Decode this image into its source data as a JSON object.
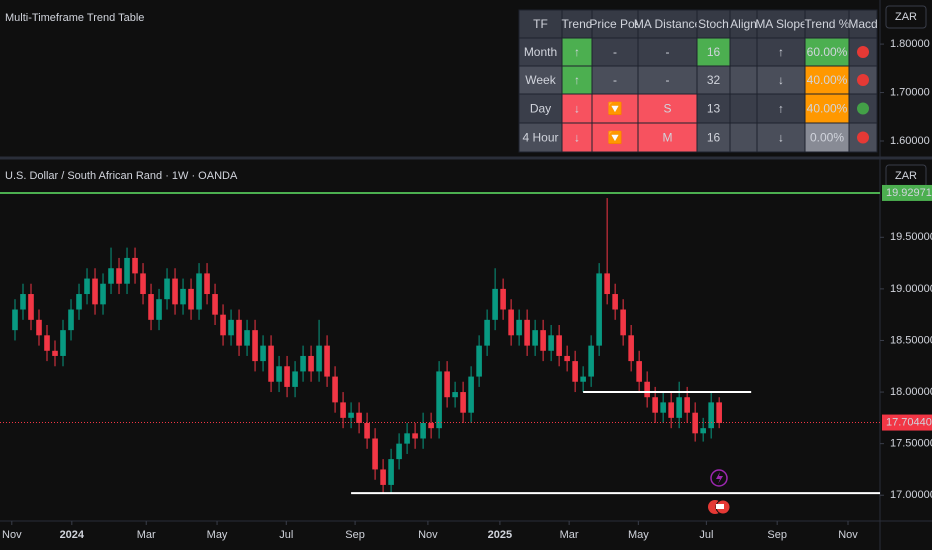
{
  "indicator": {
    "title": "Multi-Timeframe Trend Table",
    "currency": "ZAR",
    "ylim": [
      1.567,
      1.891
    ],
    "yticks": [
      {
        "value": 1.8,
        "label": "1.80000"
      },
      {
        "value": 1.7,
        "label": "1.70000"
      },
      {
        "value": 1.6,
        "label": "1.60000"
      }
    ],
    "table": {
      "header": [
        "TF",
        "Trend",
        "Price Pos",
        "MA Distance",
        "Stoch",
        "Align",
        "MA Slope",
        "Trend %",
        "Macd"
      ],
      "rows": [
        {
          "cells": [
            "Month",
            "↑",
            "-",
            "-",
            "16",
            null,
            "↑",
            "60.00%"
          ],
          "colors": [
            "#3a3e4a",
            "#4caf50",
            "#3a3e4a",
            "#3a3e4a",
            "#4caf50",
            "#3a3e4a",
            "#3a3e4a",
            "#4caf50",
            "#3a3e4a"
          ],
          "macd": "#e53935"
        },
        {
          "cells": [
            "Week",
            "↑",
            "-",
            "-",
            "32",
            null,
            "↓",
            "40.00%"
          ],
          "colors": [
            "#4a4e5a",
            "#4caf50",
            "#4a4e5a",
            "#4a4e5a",
            "#4a4e5a",
            "#4a4e5a",
            "#4a4e5a",
            "#ff9800",
            "#4a4e5a"
          ],
          "macd": "#e53935"
        },
        {
          "cells": [
            "Day",
            "↓",
            "🔽",
            "S",
            "13",
            null,
            "↑",
            "40.00%"
          ],
          "colors": [
            "#3a3e4a",
            "#f7525f",
            "#f7525f",
            "#f7525f",
            "#3a3e4a",
            "#3a3e4a",
            "#3a3e4a",
            "#ff9800",
            "#3a3e4a"
          ],
          "macd": "#43a047"
        },
        {
          "cells": [
            "4 Hour",
            "↓",
            "🔽",
            "M",
            "16",
            null,
            "↓",
            "0.00%"
          ],
          "colors": [
            "#4a4e5a",
            "#f7525f",
            "#f7525f",
            "#f7525f",
            "#4a4e5a",
            "#4a4e5a",
            "#4a4e5a",
            "#888b95",
            "#4a4e5a"
          ],
          "macd": "#e53935"
        }
      ]
    }
  },
  "chart_data": {
    "type": "candlestick",
    "title": "U.S. Dollar / South African Rand · 1W · OANDA",
    "currency": "ZAR",
    "up_color": "#089981",
    "down_color": "#f23645",
    "categories": [
      null,
      null,
      null,
      null,
      null,
      null,
      null,
      null,
      null,
      null,
      null,
      null,
      null,
      null,
      null,
      null,
      null,
      null,
      null,
      null,
      null,
      null,
      null,
      null,
      null,
      null,
      null,
      null,
      null,
      null,
      null,
      null,
      null,
      null,
      null,
      null,
      null,
      null,
      null,
      null,
      null,
      null,
      null,
      null,
      null,
      null,
      null,
      null,
      null,
      null,
      null,
      null,
      null,
      null,
      null,
      null,
      null,
      null,
      null,
      null,
      null,
      null,
      null,
      null,
      null,
      null,
      null,
      null,
      null,
      null,
      null,
      null,
      null,
      null,
      null,
      null,
      null,
      null,
      null,
      null,
      null,
      null,
      null,
      null,
      null,
      null,
      null,
      null,
      null
    ],
    "open": [
      18.6,
      18.8,
      18.95,
      18.7,
      18.55,
      18.4,
      18.35,
      18.6,
      18.8,
      18.95,
      19.1,
      18.85,
      19.05,
      19.2,
      19.05,
      19.3,
      19.15,
      18.95,
      18.7,
      18.9,
      19.1,
      18.85,
      19.0,
      18.8,
      19.15,
      18.95,
      18.75,
      18.55,
      18.7,
      18.45,
      18.6,
      18.3,
      18.45,
      18.1,
      18.25,
      18.05,
      18.2,
      18.35,
      18.2,
      18.45,
      18.15,
      17.9,
      17.75,
      17.8,
      17.7,
      17.55,
      17.25,
      17.1,
      17.35,
      17.5,
      17.6,
      17.55,
      17.7,
      17.65,
      18.2,
      17.95,
      18.0,
      17.8,
      18.15,
      18.45,
      18.7,
      19.0,
      18.8,
      18.55,
      18.7,
      18.45,
      18.6,
      18.4,
      18.55,
      18.35,
      18.3,
      18.1,
      18.15,
      18.45,
      19.15,
      18.95,
      18.8,
      18.55,
      18.3,
      18.1,
      17.95,
      17.8,
      17.9,
      17.75,
      17.95,
      17.8,
      17.6,
      17.65,
      17.9
    ],
    "high": [
      18.9,
      19.05,
      19.05,
      18.8,
      18.65,
      18.5,
      18.7,
      18.9,
      19.05,
      19.2,
      19.2,
      19.15,
      19.4,
      19.3,
      19.4,
      19.4,
      19.25,
      19.05,
      19.0,
      19.2,
      19.2,
      19.1,
      19.1,
      19.25,
      19.25,
      19.05,
      18.85,
      18.8,
      18.8,
      18.7,
      18.7,
      18.55,
      18.55,
      18.35,
      18.35,
      18.3,
      18.45,
      18.45,
      18.7,
      18.55,
      18.25,
      18.0,
      17.9,
      17.9,
      17.8,
      17.65,
      17.35,
      17.45,
      17.6,
      17.7,
      17.7,
      17.8,
      17.8,
      18.3,
      18.3,
      18.1,
      18.1,
      18.25,
      18.55,
      18.8,
      19.2,
      19.1,
      18.9,
      18.8,
      18.8,
      18.7,
      18.7,
      18.65,
      18.65,
      18.45,
      18.4,
      18.25,
      18.55,
      19.25,
      19.88,
      19.05,
      18.9,
      18.65,
      18.4,
      18.2,
      18.05,
      18.0,
      18.0,
      18.1,
      18.05,
      17.9,
      17.75,
      18.0,
      17.95
    ],
    "low": [
      18.5,
      18.7,
      18.6,
      18.45,
      18.3,
      18.25,
      18.25,
      18.5,
      18.7,
      18.85,
      18.75,
      18.75,
      18.95,
      18.95,
      18.95,
      19.05,
      18.85,
      18.6,
      18.6,
      18.8,
      18.75,
      18.75,
      18.7,
      18.7,
      18.85,
      18.65,
      18.45,
      18.45,
      18.35,
      18.35,
      18.2,
      18.2,
      18.0,
      18.0,
      17.95,
      17.95,
      18.1,
      18.1,
      18.1,
      18.05,
      17.8,
      17.65,
      17.65,
      17.6,
      17.45,
      17.15,
      17.02,
      17.02,
      17.25,
      17.4,
      17.45,
      17.45,
      17.55,
      17.55,
      17.85,
      17.85,
      17.7,
      17.7,
      18.05,
      18.35,
      18.6,
      18.7,
      18.45,
      18.45,
      18.35,
      18.35,
      18.3,
      18.3,
      18.25,
      18.2,
      18.0,
      18.0,
      18.05,
      18.35,
      18.85,
      18.7,
      18.45,
      18.2,
      18.0,
      17.85,
      17.7,
      17.7,
      17.65,
      17.65,
      17.7,
      17.52,
      17.52,
      17.55,
      17.65
    ],
    "close": [
      18.8,
      18.95,
      18.7,
      18.55,
      18.4,
      18.35,
      18.6,
      18.8,
      18.95,
      19.1,
      18.85,
      19.05,
      19.2,
      19.05,
      19.3,
      19.15,
      18.95,
      18.7,
      18.9,
      19.1,
      18.85,
      19.0,
      18.8,
      19.15,
      18.95,
      18.75,
      18.55,
      18.7,
      18.45,
      18.6,
      18.3,
      18.45,
      18.1,
      18.25,
      18.05,
      18.2,
      18.35,
      18.2,
      18.45,
      18.15,
      17.9,
      17.75,
      17.8,
      17.7,
      17.55,
      17.25,
      17.1,
      17.35,
      17.5,
      17.6,
      17.55,
      17.7,
      17.65,
      18.2,
      17.95,
      18.0,
      17.8,
      18.15,
      18.45,
      18.7,
      19.0,
      18.8,
      18.55,
      18.7,
      18.45,
      18.6,
      18.4,
      18.55,
      18.35,
      18.3,
      18.1,
      18.15,
      18.45,
      19.15,
      18.95,
      18.8,
      18.55,
      18.3,
      18.1,
      17.95,
      17.8,
      17.9,
      17.75,
      17.95,
      17.8,
      17.6,
      17.65,
      17.9,
      17.7
    ],
    "xlim": [
      -1.875,
      108.1
    ],
    "xticks": [
      {
        "value": -0.4,
        "label": "Nov"
      },
      {
        "value": 7.1,
        "label": "2024"
      },
      {
        "value": 16.4,
        "label": "Mar"
      },
      {
        "value": 25.25,
        "label": "May"
      },
      {
        "value": 33.9,
        "label": "Jul"
      },
      {
        "value": 42.5,
        "label": "Sep"
      },
      {
        "value": 51.6,
        "label": "Nov"
      },
      {
        "value": 60.6,
        "label": "2025"
      },
      {
        "value": 69.25,
        "label": "Mar"
      },
      {
        "value": 77.9,
        "label": "May"
      },
      {
        "value": 86.4,
        "label": "Jul"
      },
      {
        "value": 95.25,
        "label": "Sep"
      },
      {
        "value": 104.1,
        "label": "Nov"
      }
    ],
    "ylim": [
      16.76,
      20.22
    ],
    "yticks": [
      {
        "value": 19.5,
        "label": "19.50000"
      },
      {
        "value": 19.0,
        "label": "19.00000"
      },
      {
        "value": 18.5,
        "label": "18.50000"
      },
      {
        "value": 18.0,
        "label": "18.00000"
      },
      {
        "value": 17.5,
        "label": "17.50000"
      },
      {
        "value": 17.0,
        "label": "17.00000"
      }
    ],
    "levels": [
      {
        "value": 19.92971,
        "label": "19.92971",
        "color": "#4caf50",
        "x_from": -1.875,
        "x_to": 108.1
      },
      {
        "value": 18.0,
        "color": "#ffffff",
        "x_from": 71,
        "x_to": 92
      },
      {
        "value": 17.02,
        "color": "#ffffff",
        "x_from": 42,
        "x_to": 108.1
      }
    ],
    "last": {
      "value": 17.7044,
      "label": "17.70440",
      "color": "#f23645"
    }
  }
}
